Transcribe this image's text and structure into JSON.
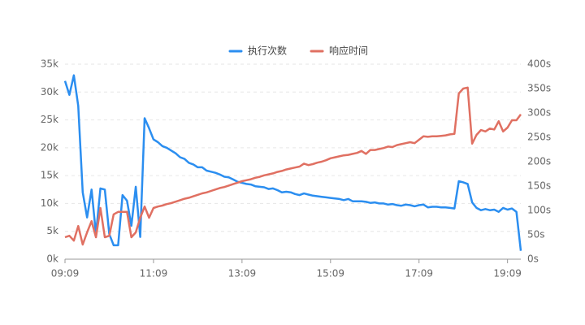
{
  "chart_data": {
    "type": "line",
    "categories": [
      "09:09",
      null,
      null,
      null,
      null,
      null,
      null,
      null,
      null,
      null,
      null,
      null,
      null,
      null,
      null,
      null,
      null,
      null,
      null,
      null,
      "11:09",
      null,
      null,
      null,
      null,
      null,
      null,
      null,
      null,
      null,
      null,
      null,
      null,
      null,
      null,
      null,
      null,
      null,
      null,
      null,
      "13:09",
      null,
      null,
      null,
      null,
      null,
      null,
      null,
      null,
      null,
      null,
      null,
      null,
      null,
      null,
      null,
      null,
      null,
      null,
      null,
      "15:09",
      null,
      null,
      null,
      null,
      null,
      null,
      null,
      null,
      null,
      null,
      null,
      null,
      null,
      null,
      null,
      null,
      null,
      null,
      null,
      "17:09",
      null,
      null,
      null,
      null,
      null,
      null,
      null,
      null,
      null,
      null,
      null,
      null,
      null,
      null,
      null,
      null,
      null,
      null,
      null,
      "19:09",
      null,
      null,
      null
    ],
    "series": [
      {
        "name": "执行次数",
        "color": "#2b8ef0",
        "values": [
          32000,
          29500,
          33000,
          27500,
          12000,
          7500,
          12500,
          4500,
          12700,
          12500,
          4500,
          2500,
          2500,
          11500,
          10500,
          6000,
          13000,
          4000,
          25300,
          23500,
          21500,
          21000,
          20300,
          20000,
          19500,
          19000,
          18300,
          18000,
          17300,
          17000,
          16500,
          16500,
          15900,
          15700,
          15500,
          15200,
          14800,
          14700,
          14300,
          13900,
          13700,
          13500,
          13400,
          13100,
          13000,
          12900,
          12600,
          12700,
          12400,
          12000,
          12100,
          12000,
          11700,
          11500,
          11800,
          11600,
          11400,
          11300,
          11200,
          11100,
          11000,
          10900,
          10800,
          10600,
          10800,
          10400,
          10400,
          10400,
          10300,
          10100,
          10200,
          10000,
          10000,
          9800,
          9900,
          9700,
          9600,
          9800,
          9700,
          9500,
          9700,
          9800,
          9300,
          9400,
          9400,
          9300,
          9300,
          9200,
          9100,
          14000,
          13800,
          13500,
          10200,
          9200,
          8800,
          9000,
          8800,
          8900,
          8500,
          9200,
          8900,
          9100,
          8500,
          1500
        ]
      },
      {
        "name": "响应时间",
        "color": "#e07062",
        "axis": "y2",
        "values": [
          45,
          48,
          38,
          68,
          30,
          55,
          78,
          45,
          105,
          45,
          48,
          92,
          97,
          97,
          97,
          45,
          55,
          85,
          108,
          85,
          105,
          108,
          110,
          113,
          115,
          118,
          121,
          124,
          126,
          129,
          132,
          135,
          137,
          140,
          143,
          146,
          148,
          151,
          154,
          157,
          160,
          162,
          164,
          167,
          169,
          172,
          174,
          176,
          179,
          181,
          184,
          186,
          188,
          190,
          196,
          193,
          195,
          198,
          200,
          203,
          207,
          209,
          211,
          213,
          214,
          216,
          218,
          222,
          216,
          224,
          224,
          226,
          228,
          231,
          230,
          234,
          236,
          238,
          240,
          238,
          245,
          252,
          251,
          252,
          252,
          253,
          254,
          256,
          257,
          340,
          350,
          352,
          237,
          255,
          265,
          262,
          268,
          266,
          283,
          262,
          270,
          285,
          285,
          297
        ]
      }
    ],
    "ylim": [
      0,
      35000
    ],
    "yticks": [
      {
        "value": 0,
        "label": "0k"
      },
      {
        "value": 5000,
        "label": "5k"
      },
      {
        "value": 10000,
        "label": "10k"
      },
      {
        "value": 15000,
        "label": "15k"
      },
      {
        "value": 20000,
        "label": "20k"
      },
      {
        "value": 25000,
        "label": "25k"
      },
      {
        "value": 30000,
        "label": "30k"
      },
      {
        "value": 35000,
        "label": "35k"
      }
    ],
    "y2lim": [
      0,
      400
    ],
    "y2ticks": [
      {
        "value": 0,
        "label": "0s"
      },
      {
        "value": 50,
        "label": "50s"
      },
      {
        "value": 100,
        "label": "100s"
      },
      {
        "value": 150,
        "label": "150s"
      },
      {
        "value": 200,
        "label": "200s"
      },
      {
        "value": 250,
        "label": "250s"
      },
      {
        "value": 300,
        "label": "300s"
      },
      {
        "value": 350,
        "label": "350s"
      },
      {
        "value": 400,
        "label": "400s"
      }
    ],
    "grid": true,
    "legend": "top"
  }
}
